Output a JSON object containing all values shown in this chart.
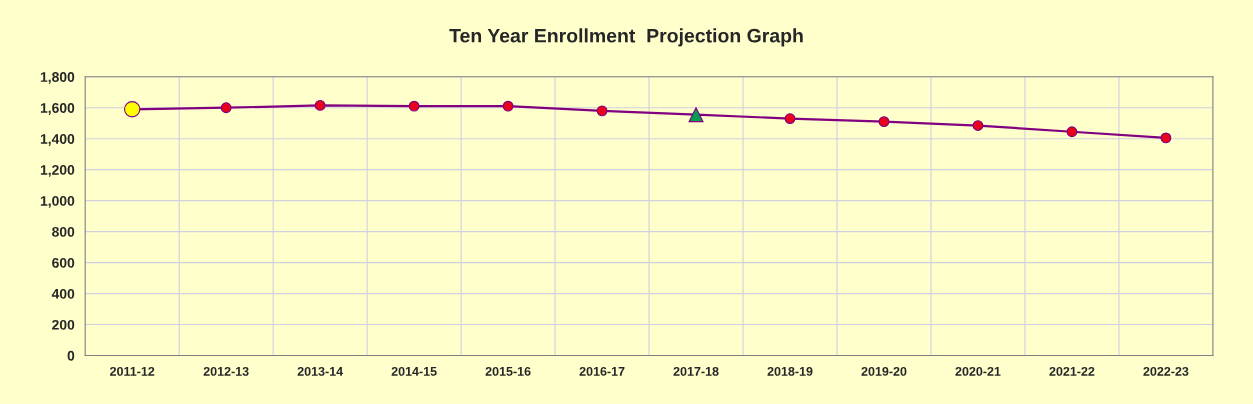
{
  "chart_data": {
    "type": "line",
    "title": "Ten Year Enrollment  Projection Graph",
    "categories": [
      "2011-12",
      "2012-13",
      "2013-14",
      "2014-15",
      "2015-16",
      "2016-17",
      "2017-18",
      "2018-19",
      "2019-20",
      "2020-21",
      "2021-22",
      "2022-23"
    ],
    "series": [
      {
        "color": "#800080",
        "marker": "none",
        "values": [
          1590,
          1600,
          1615,
          1610,
          1610,
          1580,
          1555,
          1530,
          1510,
          1485,
          1445,
          1405
        ]
      },
      {
        "type": "scatter",
        "color": "#e8001c",
        "marker": "circle",
        "values": [
          null,
          1600,
          1615,
          1610,
          1610,
          1580,
          null,
          1530,
          1510,
          1485,
          1445,
          1405
        ]
      },
      {
        "type": "scatter",
        "color": "#ffff00",
        "marker": "circle",
        "values": [
          1590,
          null,
          null,
          null,
          null,
          null,
          null,
          null,
          null,
          null,
          null,
          null
        ]
      },
      {
        "type": "scatter",
        "color": "#00a050",
        "marker": "triangle",
        "values": [
          null,
          null,
          null,
          null,
          null,
          null,
          1555,
          null,
          null,
          null,
          null,
          null
        ]
      }
    ],
    "ylim": [
      0,
      1800
    ],
    "yticks": [
      0,
      {
        "value": 200,
        "label": "200"
      },
      400,
      600,
      800,
      {
        "value": 1000,
        "label": "1,000"
      },
      {
        "value": 1200,
        "label": "1,200"
      },
      {
        "value": 1400,
        "label": "1,400"
      },
      {
        "value": 1600,
        "label": "1,600"
      },
      {
        "value": 1800,
        "label": "1,800"
      }
    ],
    "grid": true,
    "legend": false
  }
}
